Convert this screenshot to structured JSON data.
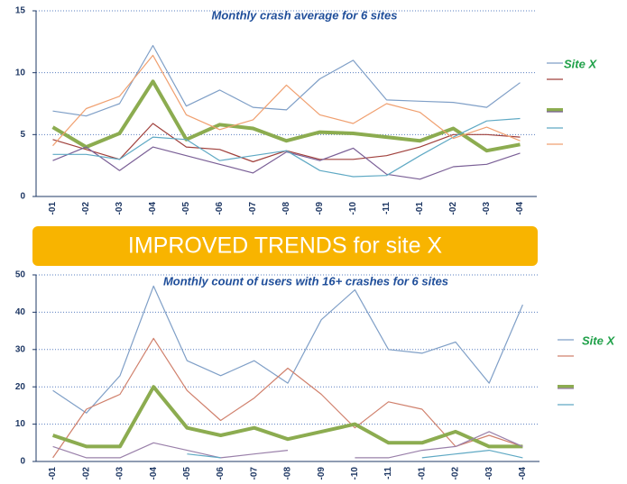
{
  "banner": "IMPROVED TRENDS for site X",
  "chart_data": [
    {
      "type": "line",
      "title": "Monthly crash average for 6 sites",
      "categories": [
        "-01",
        "-02",
        "-03",
        "-04",
        "-05",
        "-06",
        "-07",
        "-08",
        "-09",
        "-10",
        "-11",
        "-01",
        "-02",
        "-03",
        "-04"
      ],
      "ylim": [
        0,
        15
      ],
      "yticks": [
        0,
        5,
        10,
        15
      ],
      "grid": true,
      "series": [
        {
          "color": "#7f9fc7",
          "values": [
            6.9,
            6.5,
            7.5,
            12.2,
            7.3,
            8.6,
            7.2,
            7.0,
            9.5,
            11.0,
            7.8,
            7.7,
            7.6,
            7.2,
            9.2
          ]
        },
        {
          "color": "#a0403c",
          "values": [
            4.6,
            3.8,
            3.0,
            5.9,
            4.0,
            3.8,
            2.8,
            3.7,
            3.0,
            3.0,
            3.3,
            4.0,
            5.0,
            5.0,
            4.8
          ]
        },
        {
          "name": "Site X",
          "color": "#8cac50",
          "values": [
            5.6,
            4.0,
            5.1,
            9.3,
            4.6,
            5.8,
            5.5,
            4.5,
            5.2,
            5.1,
            4.8,
            4.5,
            5.5,
            3.7,
            4.2
          ]
        },
        {
          "color": "#7a5f96",
          "values": [
            2.9,
            4.0,
            2.1,
            4.0,
            3.3,
            2.6,
            1.9,
            3.6,
            2.9,
            3.9,
            1.8,
            1.4,
            2.4,
            2.6,
            3.5
          ]
        },
        {
          "color": "#5fa9c4",
          "values": [
            3.4,
            3.4,
            3.0,
            4.8,
            4.6,
            2.9,
            3.3,
            3.7,
            2.1,
            1.6,
            1.7,
            3.3,
            4.8,
            6.1,
            6.3
          ]
        },
        {
          "color": "#f0a070",
          "values": [
            4.1,
            7.1,
            8.1,
            11.4,
            6.6,
            5.4,
            6.2,
            9.0,
            6.6,
            5.9,
            7.5,
            6.8,
            4.7,
            5.6,
            4.5
          ]
        }
      ]
    },
    {
      "type": "line",
      "title": "Monthly count of users with 16+ crashes for 6 sites",
      "categories": [
        "-01",
        "-02",
        "-03",
        "-04",
        "-05",
        "-06",
        "-07",
        "-08",
        "-09",
        "-10",
        "-11",
        "-01",
        "-02",
        "-03",
        "-04"
      ],
      "ylim": [
        0,
        50
      ],
      "yticks": [
        0,
        10,
        20,
        30,
        40,
        50
      ],
      "grid": true,
      "series": [
        {
          "color": "#7f9fc7",
          "values": [
            19,
            13,
            23,
            47,
            27,
            23,
            27,
            21,
            38,
            46,
            30,
            29,
            32,
            21,
            42
          ]
        },
        {
          "color": "#d0806c",
          "values": [
            1,
            14,
            18,
            33,
            19,
            11,
            17,
            25,
            18,
            9,
            16,
            14,
            4,
            7,
            4
          ]
        },
        {
          "name": "Site X",
          "color": "#8cac50",
          "values": [
            7,
            4,
            4,
            20,
            9,
            7,
            9,
            6,
            8,
            10,
            5,
            5,
            8,
            4,
            4
          ]
        },
        {
          "color": "#9a80aa",
          "values": [
            4,
            1,
            1,
            5,
            3,
            1,
            2,
            3,
            null,
            1,
            1,
            3,
            4,
            8,
            4
          ]
        },
        {
          "color": "#5fa9c4",
          "values": [
            null,
            null,
            null,
            null,
            2,
            1,
            null,
            null,
            null,
            null,
            null,
            1,
            2,
            3,
            1
          ]
        }
      ]
    }
  ]
}
